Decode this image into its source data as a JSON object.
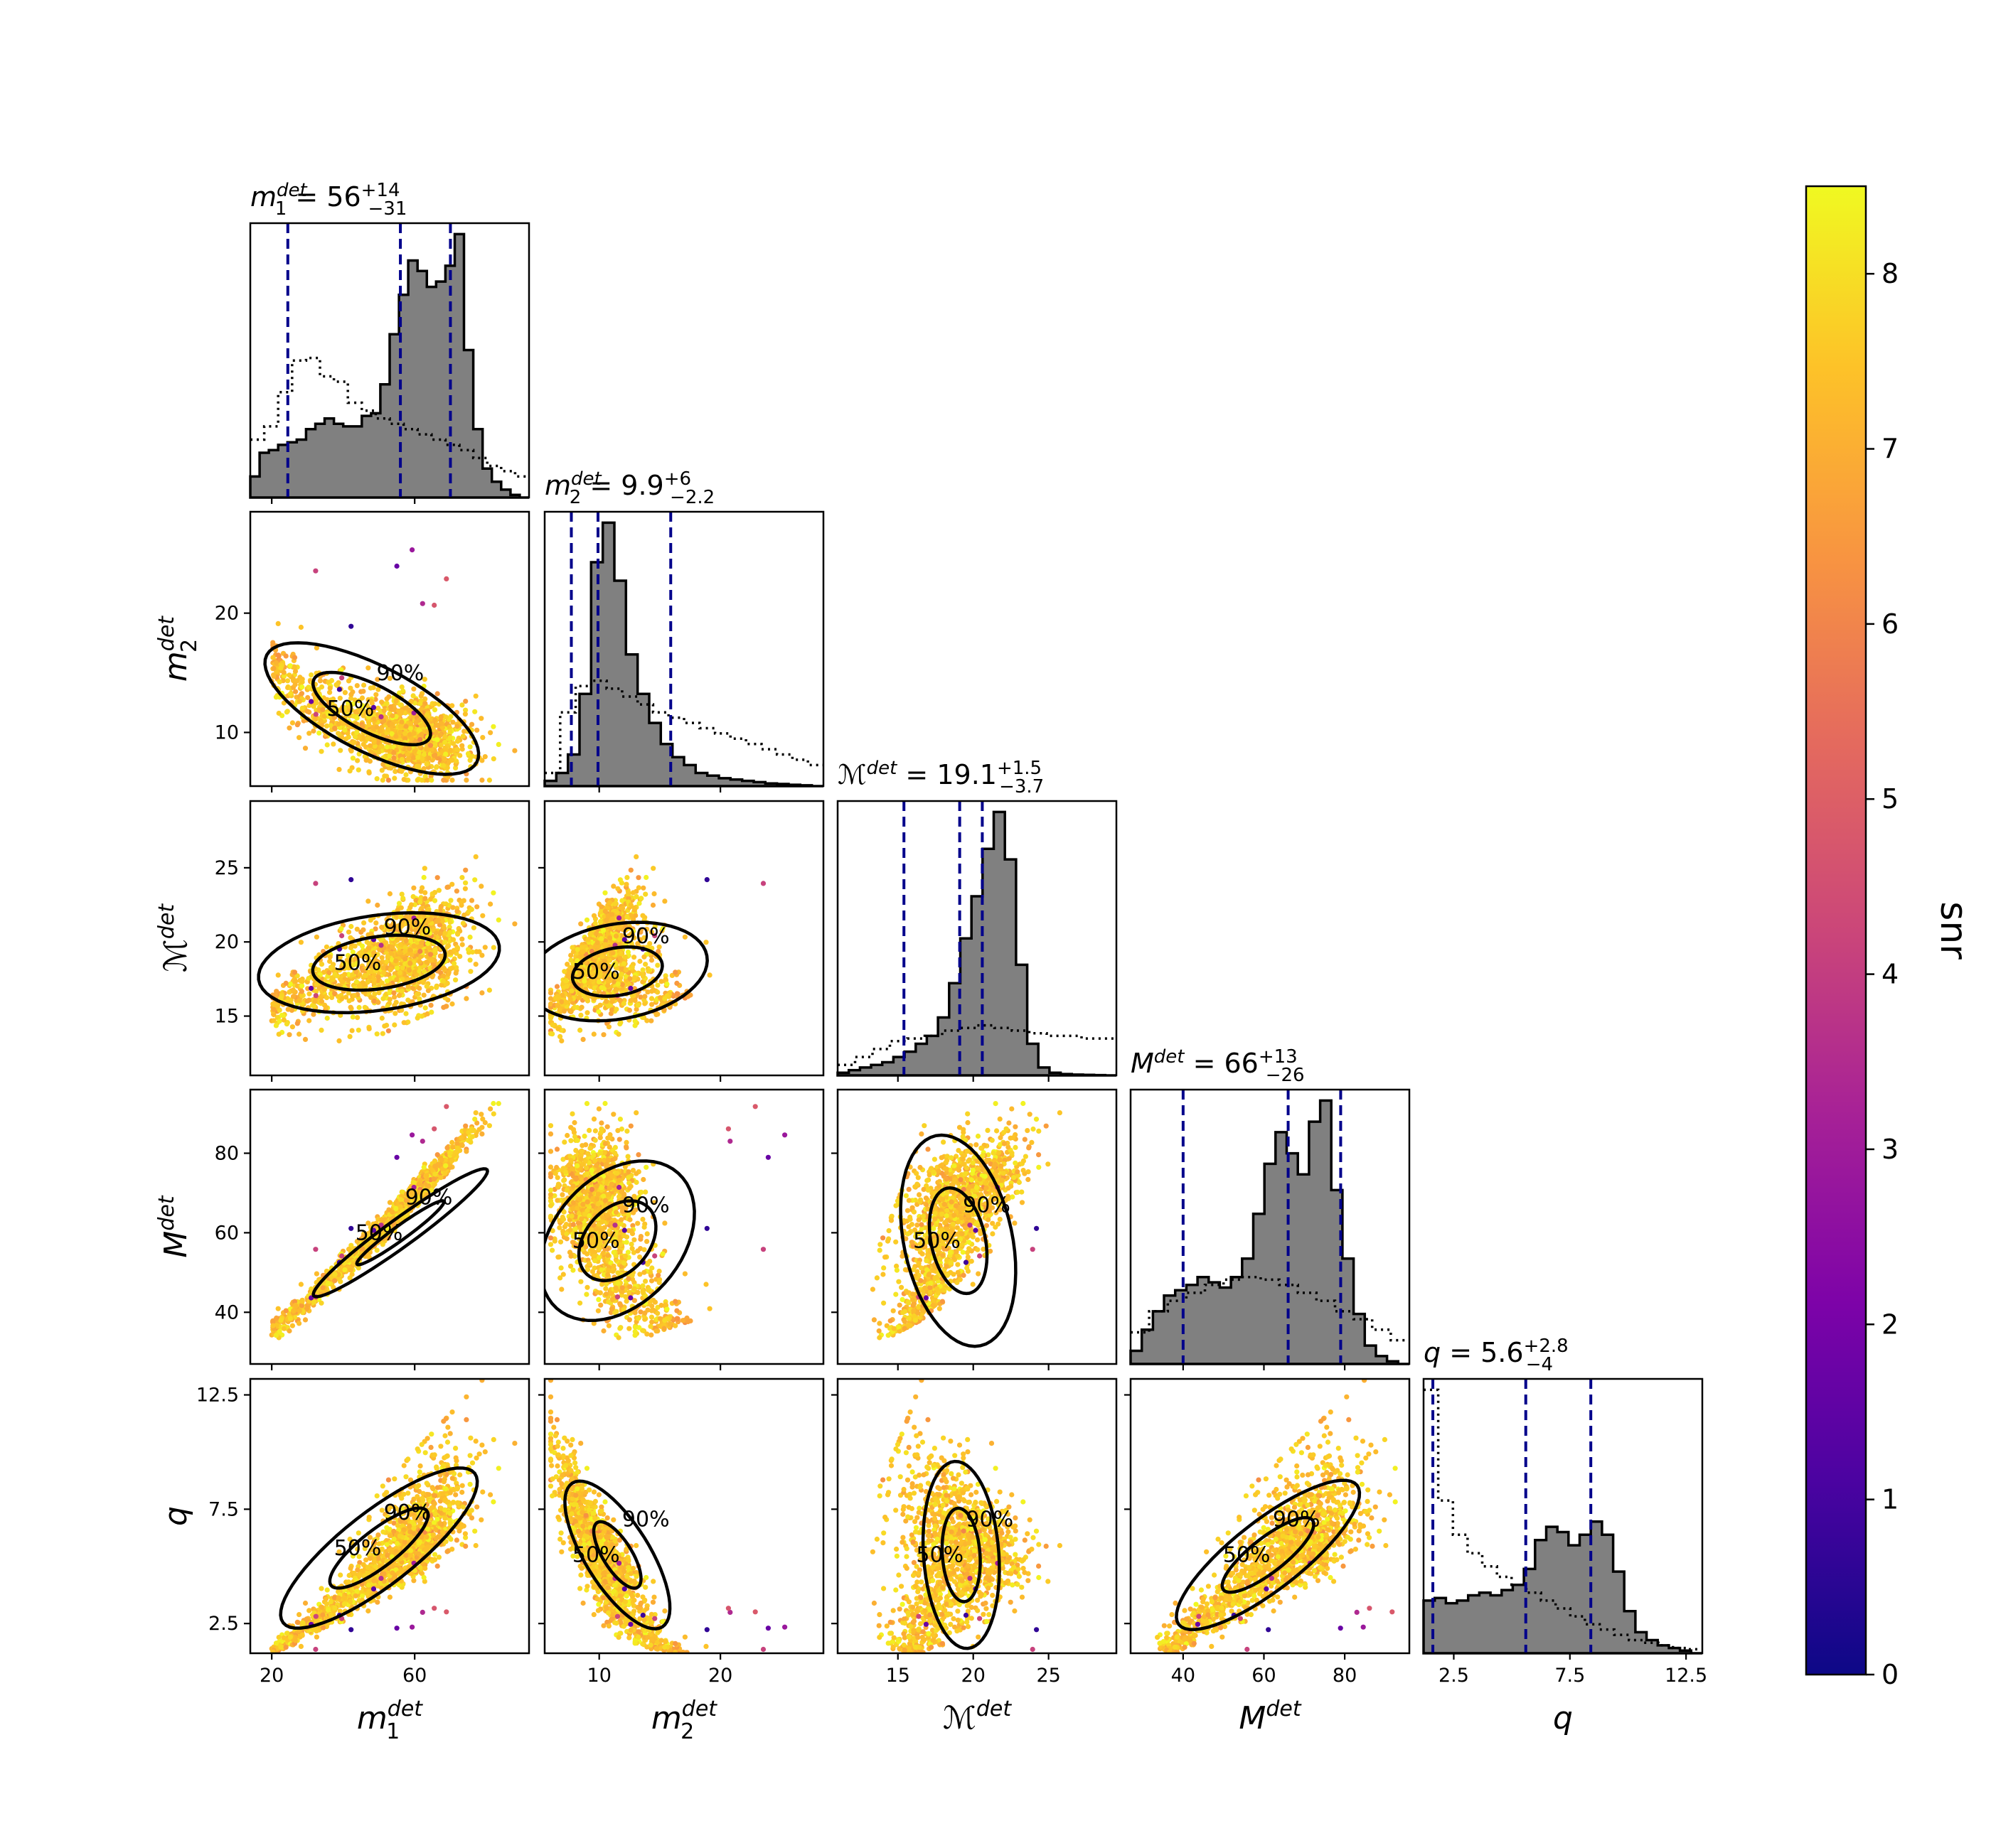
{
  "chart_data": {
    "type": "scatter",
    "variables": [
      {
        "name": "m1det",
        "label": "m",
        "sub": "1",
        "sup": "det",
        "lim": [
          14,
          92
        ],
        "ticks": [
          20,
          60
        ],
        "tick_labels": [
          "20",
          "60"
        ]
      },
      {
        "name": "m2det",
        "label": "m",
        "sub": "2",
        "sup": "det",
        "lim": [
          5.5,
          28.5
        ],
        "ticks": [
          10,
          20
        ],
        "tick_labels": [
          "10",
          "20"
        ]
      },
      {
        "name": "Mcdet",
        "label": "ℳ",
        "sub": "",
        "sup": "det",
        "lim": [
          11,
          29.5
        ],
        "ticks": [
          15,
          20,
          25
        ],
        "tick_labels": [
          "15",
          "20",
          "25"
        ]
      },
      {
        "name": "Mdet",
        "label": "M",
        "sub": "",
        "sup": "det",
        "lim": [
          27,
          96
        ],
        "ticks": [
          40,
          60,
          80
        ],
        "tick_labels": [
          "40",
          "60",
          "80"
        ]
      },
      {
        "name": "q",
        "label": "q",
        "sub": "",
        "sup": "",
        "lim": [
          1.2,
          13.2
        ],
        "ticks": [
          2.5,
          7.5,
          12.5
        ],
        "tick_labels": [
          "2.5",
          "7.5",
          "12.5"
        ]
      }
    ],
    "y_tick_labels": [
      null,
      {
        "ticks": [
          10,
          20
        ],
        "tick_labels": [
          "10",
          "20"
        ]
      },
      {
        "ticks": [
          15,
          20,
          25
        ],
        "tick_labels": [
          "15",
          "20",
          "25"
        ]
      },
      {
        "ticks": [
          40,
          60,
          80
        ],
        "tick_labels": [
          "40",
          "60",
          "80"
        ]
      },
      {
        "ticks": [
          2.5,
          7.5,
          12.5
        ],
        "tick_labels": [
          "2.5",
          "7.5",
          "12.5"
        ]
      }
    ],
    "diagonal_summaries": [
      {
        "variable": "m1det",
        "median": "56",
        "plus": "+14",
        "minus": "−31",
        "quantile_lines": [
          24.5,
          56,
          70
        ]
      },
      {
        "variable": "m2det",
        "median": "9.9",
        "plus": "+6",
        "minus": "−2.2",
        "quantile_lines": [
          7.7,
          9.9,
          15.9
        ]
      },
      {
        "variable": "Mcdet",
        "median": "19.1",
        "plus": "+1.5",
        "minus": "−3.7",
        "quantile_lines": [
          15.4,
          19.1,
          20.6
        ]
      },
      {
        "variable": "Mdet",
        "median": "66",
        "plus": "+13",
        "minus": "−26",
        "quantile_lines": [
          40,
          66,
          79
        ]
      },
      {
        "variable": "q",
        "median": "5.6",
        "plus": "+2.8",
        "minus": "−4",
        "quantile_lines": [
          1.6,
          5.6,
          8.4
        ]
      }
    ],
    "histograms": [
      {
        "variable": "m1det",
        "posterior": [
          0.08,
          0.17,
          0.18,
          0.2,
          0.21,
          0.22,
          0.26,
          0.28,
          0.3,
          0.28,
          0.27,
          0.27,
          0.31,
          0.32,
          0.43,
          0.62,
          0.77,
          0.9,
          0.86,
          0.8,
          0.82,
          0.88,
          1.0,
          0.56,
          0.26,
          0.11,
          0.06,
          0.03,
          0.01,
          0.0
        ],
        "prior": [
          0.22,
          0.27,
          0.4,
          0.52,
          0.53,
          0.46,
          0.44,
          0.36,
          0.33,
          0.3,
          0.28,
          0.26,
          0.24,
          0.22,
          0.2,
          0.18,
          0.15,
          0.12,
          0.1,
          0.08
        ]
      },
      {
        "variable": "m2det",
        "posterior": [
          0.02,
          0.05,
          0.12,
          0.35,
          0.85,
          1.0,
          0.78,
          0.5,
          0.35,
          0.24,
          0.16,
          0.11,
          0.08,
          0.05,
          0.04,
          0.03,
          0.025,
          0.02,
          0.015,
          0.01,
          0.008,
          0.005,
          0.003,
          0.0
        ],
        "prior": [
          0.05,
          0.28,
          0.38,
          0.4,
          0.37,
          0.34,
          0.31,
          0.28,
          0.26,
          0.24,
          0.22,
          0.2,
          0.18,
          0.16,
          0.14,
          0.12,
          0.1,
          0.08
        ]
      },
      {
        "variable": "Mcdet",
        "posterior": [
          0.01,
          0.02,
          0.03,
          0.04,
          0.05,
          0.07,
          0.09,
          0.12,
          0.15,
          0.22,
          0.35,
          0.52,
          0.68,
          0.86,
          1.0,
          0.82,
          0.42,
          0.12,
          0.03,
          0.01,
          0.005,
          0.003,
          0.002,
          0.001,
          0.0
        ],
        "prior": [
          0.04,
          0.07,
          0.1,
          0.13,
          0.14,
          0.15,
          0.17,
          0.18,
          0.19,
          0.18,
          0.17,
          0.16,
          0.15,
          0.15,
          0.14,
          0.14
        ]
      },
      {
        "variable": "Mdet",
        "posterior": [
          0.05,
          0.13,
          0.2,
          0.26,
          0.28,
          0.3,
          0.33,
          0.31,
          0.29,
          0.33,
          0.4,
          0.57,
          0.76,
          0.88,
          0.8,
          0.72,
          0.92,
          1.0,
          0.66,
          0.4,
          0.19,
          0.07,
          0.03,
          0.01,
          0.0
        ],
        "prior": [
          0.12,
          0.2,
          0.24,
          0.27,
          0.3,
          0.32,
          0.33,
          0.32,
          0.3,
          0.27,
          0.24,
          0.2,
          0.17,
          0.13,
          0.09
        ]
      },
      {
        "variable": "q",
        "posterior": [
          0.2,
          0.21,
          0.19,
          0.2,
          0.22,
          0.23,
          0.22,
          0.24,
          0.26,
          0.32,
          0.43,
          0.48,
          0.46,
          0.41,
          0.45,
          0.5,
          0.45,
          0.31,
          0.16,
          0.08,
          0.05,
          0.03,
          0.02,
          0.01,
          0.0
        ],
        "prior": [
          1.0,
          0.58,
          0.45,
          0.38,
          0.33,
          0.29,
          0.26,
          0.23,
          0.2,
          0.17,
          0.14,
          0.11,
          0.09,
          0.07,
          0.05,
          0.04,
          0.03,
          0.02,
          0.015
        ]
      }
    ],
    "contour_levels": [
      "50%",
      "90%"
    ],
    "colorbar": {
      "label": "snr",
      "min": 0,
      "max": 8.5,
      "ticks": [
        0,
        1,
        2,
        3,
        4,
        5,
        6,
        7,
        8
      ],
      "tick_labels": [
        "0",
        "1",
        "2",
        "3",
        "4",
        "5",
        "6",
        "7",
        "8"
      ],
      "colormap": "plasma"
    },
    "colors": {
      "hist_fill": "#808080",
      "hist_edge": "#000000",
      "quantile_line": "#00008b",
      "prior_line": "#000000",
      "contour": "#000000"
    }
  }
}
